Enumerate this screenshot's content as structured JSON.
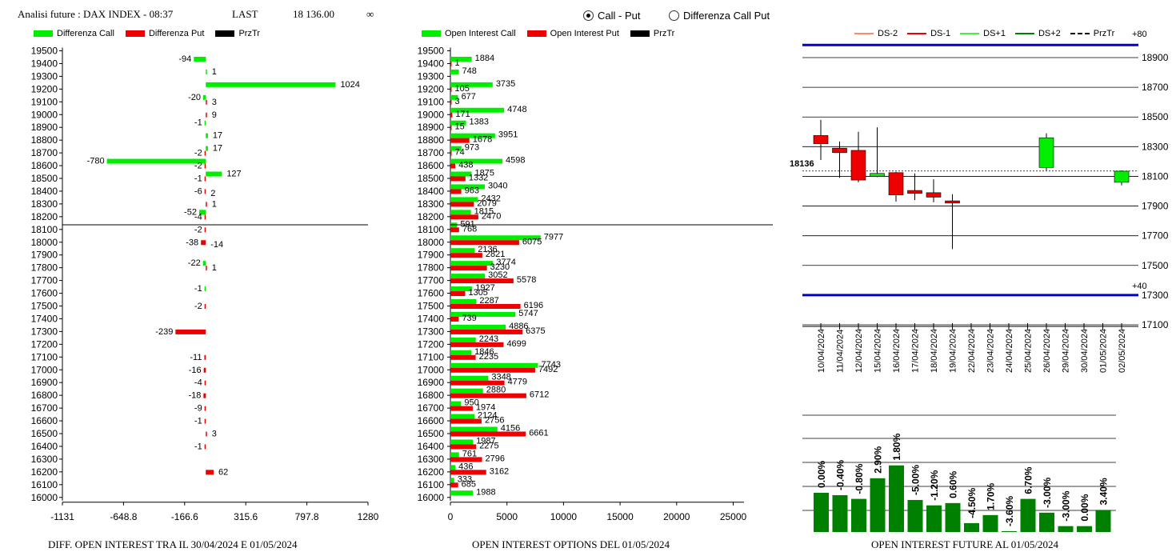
{
  "header": {
    "title": "Analisi future : DAX INDEX - 08:37",
    "last_label": "LAST",
    "last_value": "18 136.00",
    "infinity": "∞"
  },
  "radio": {
    "option1": "Call - Put",
    "option2": "Differenza Call Put",
    "selected": "option1"
  },
  "colors": {
    "green": "#00ee00",
    "red": "#ee0000",
    "black": "#000000",
    "blue": "#0000cc",
    "dark_green": "#008000"
  },
  "legend1": {
    "call": "Differenza Call",
    "put": "Differenza Put",
    "prz": "PrzTr"
  },
  "legend2": {
    "call": "Open Interest Call",
    "put": "Open Interest Put",
    "prz": "PrzTr"
  },
  "legend3": {
    "ds_m2": "DS-2",
    "ds_m1": "DS-1",
    "ds_p1": "DS+1",
    "ds_p2": "DS+2",
    "prz": "PrzTr"
  },
  "captions": {
    "c1": "DIFF. OPEN INTEREST TRA IL 30/04/2024 E 01/05/2024",
    "c2": "OPEN INTEREST OPTIONS DEL 01/05/2024",
    "c3": "OPEN INTEREST FUTURE AL 01/05/2024"
  },
  "chart_data": [
    {
      "type": "bar",
      "orientation": "horizontal",
      "strikes": [
        19500,
        19400,
        19300,
        19200,
        19100,
        19000,
        18900,
        18800,
        18700,
        18600,
        18500,
        18400,
        18300,
        18200,
        18100,
        18000,
        17900,
        17800,
        17700,
        17600,
        17500,
        17400,
        17300,
        17200,
        17100,
        17000,
        16900,
        16800,
        16700,
        16600,
        16500,
        16400,
        16300,
        16200,
        16100,
        16000
      ],
      "series": [
        {
          "name": "Differenza Call",
          "values": [
            null,
            -94,
            1,
            1024,
            -20,
            null,
            -1,
            17,
            17,
            -780,
            127,
            null,
            null,
            -52,
            null,
            null,
            null,
            -22,
            null,
            -1,
            null,
            null,
            null,
            null,
            null,
            null,
            null,
            null,
            null,
            null,
            null,
            null,
            null,
            null,
            null,
            null
          ]
        },
        {
          "name": "Differenza Put",
          "values": [
            null,
            null,
            null,
            null,
            3,
            9,
            null,
            null,
            -2,
            -2,
            -1,
            -6,
            1,
            -4,
            -2,
            -38,
            null,
            1,
            null,
            null,
            -2,
            null,
            -239,
            null,
            -11,
            -16,
            -4,
            -18,
            -9,
            -1,
            3,
            -1,
            null,
            62,
            null,
            null
          ]
        }
      ],
      "extra_labels": [
        {
          "strike": 18400,
          "text": "2"
        },
        {
          "strike": 18000,
          "text": "-14"
        }
      ],
      "x_ticks": [
        "-1131",
        "-648.8",
        "-166.6",
        "315.6",
        "797.8",
        "1280"
      ],
      "xlim": [
        -1131,
        1280
      ],
      "price_line": 18136
    },
    {
      "type": "bar",
      "orientation": "horizontal",
      "strikes": [
        19500,
        19400,
        19300,
        19200,
        19100,
        19000,
        18900,
        18800,
        18700,
        18600,
        18500,
        18400,
        18300,
        18200,
        18100,
        18000,
        17900,
        17800,
        17700,
        17600,
        17500,
        17400,
        17300,
        17200,
        17100,
        17000,
        16900,
        16800,
        16700,
        16600,
        16500,
        16400,
        16300,
        16200,
        16100,
        16000
      ],
      "series": [
        {
          "name": "Open Interest Call",
          "values": [
            null,
            1884,
            748,
            3735,
            677,
            4748,
            1383,
            3951,
            973,
            4598,
            1875,
            3040,
            2432,
            1815,
            591,
            7977,
            2136,
            3774,
            3052,
            1927,
            2287,
            5747,
            4886,
            2243,
            1846,
            7743,
            3348,
            2880,
            950,
            2124,
            4156,
            1987,
            761,
            436,
            333,
            1988
          ]
        },
        {
          "name": "Open Interest Put",
          "values": [
            null,
            1,
            null,
            105,
            3,
            171,
            15,
            1678,
            74,
            438,
            1332,
            963,
            2079,
            2470,
            768,
            6075,
            2821,
            3230,
            5578,
            1305,
            6196,
            739,
            6375,
            4699,
            2235,
            7492,
            4779,
            6712,
            1974,
            2756,
            6661,
            2275,
            2796,
            3162,
            685,
            null
          ]
        }
      ],
      "x_ticks": [
        "0",
        "5000",
        "10000",
        "15000",
        "20000",
        "25000"
      ],
      "xlim": [
        0,
        28500
      ],
      "price_line": 18136
    },
    {
      "type": "candlestick",
      "dates": [
        "10/04/2024",
        "11/04/2024",
        "12/04/2024",
        "15/04/2024",
        "16/04/2024",
        "17/04/2024",
        "18/04/2024",
        "19/04/2024",
        "22/04/2024",
        "23/04/2024",
        "24/04/2024",
        "25/04/2024",
        "26/04/2024",
        "29/04/2024",
        "30/04/2024",
        "01/05/2024",
        "02/05/2024"
      ],
      "candles": [
        {
          "date": "10/04/2024",
          "open": 18320,
          "close": 18375,
          "high": 18480,
          "low": 18210,
          "color": "red"
        },
        {
          "date": "11/04/2024",
          "open": 18290,
          "close": 18260,
          "high": 18335,
          "low": 18090,
          "color": "red"
        },
        {
          "date": "12/04/2024",
          "open": 18275,
          "close": 18075,
          "high": 18400,
          "low": 18060,
          "color": "red"
        },
        {
          "date": "15/04/2024",
          "open": 18100,
          "close": 18120,
          "high": 18430,
          "low": 18095,
          "color": "green"
        },
        {
          "date": "16/04/2024",
          "open": 18125,
          "close": 17975,
          "high": 18130,
          "low": 17930,
          "color": "red"
        },
        {
          "date": "17/04/2024",
          "open": 18005,
          "close": 17985,
          "high": 18120,
          "low": 17940,
          "color": "red"
        },
        {
          "date": "18/04/2024",
          "open": 17990,
          "close": 17960,
          "high": 18080,
          "low": 17925,
          "color": "red"
        },
        {
          "date": "19/04/2024",
          "open": 17935,
          "close": 17920,
          "high": 17980,
          "low": 17610,
          "color": "red"
        },
        {
          "date": "26/04/2024",
          "open": 18160,
          "close": 18360,
          "high": 18390,
          "low": 18140,
          "color": "green"
        },
        {
          "date": "02/05/2024",
          "open": 18060,
          "close": 18135,
          "high": 18140,
          "low": 18040,
          "color": "green"
        }
      ],
      "y_ticks": [
        "18900",
        "18700",
        "18500",
        "18300",
        "18100",
        "17900",
        "17700",
        "17500",
        "17300",
        "17100"
      ],
      "ylim": [
        17100,
        18900
      ],
      "upper_band_label": "+80",
      "upper_band": 18985,
      "lower_band_label": "+40",
      "lower_band": 17300,
      "price_line": 18136,
      "price_label": "18136"
    },
    {
      "type": "bar",
      "categories": [
        "10/04/2024",
        "11/04/2024",
        "12/04/2024",
        "15/04/2024",
        "16/04/2024",
        "17/04/2024",
        "18/04/2024",
        "19/04/2024",
        "22/04/2024",
        "23/04/2024",
        "24/04/2024",
        "25/04/2024",
        "26/04/2024",
        "29/04/2024",
        "30/04/2024",
        "01/05/2024"
      ],
      "values": [
        32.7,
        30.7,
        27.6,
        44.8,
        55.5,
        26.7,
        22.2,
        24.1,
        7.4,
        14.1,
        0.7,
        27.6,
        16.1,
        4.9,
        4.9,
        18.4
      ],
      "labels": [
        "0.00%",
        "-0.40%",
        "-0.80%",
        "2.90%",
        "1.80%",
        "-5.00%",
        "-1.20%",
        "0.60%",
        "-4.50%",
        "1.70%",
        "-3.60%",
        "6.70%",
        "-3.00%",
        "-3.00%",
        "0.00%",
        "3.40%"
      ]
    }
  ]
}
